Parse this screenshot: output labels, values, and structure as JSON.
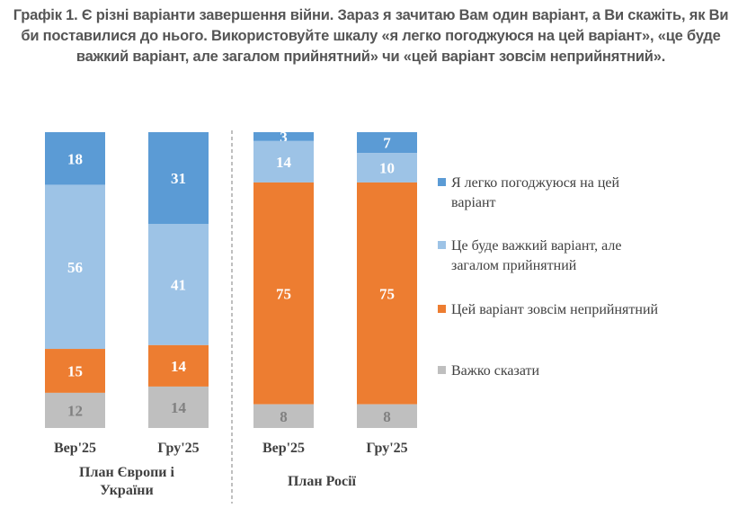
{
  "chart_data": {
    "type": "bar",
    "stacked": true,
    "title": "Графік 1. Є різні варіанти завершення війни. Зараз я зачитаю Вам один варіант, а Ви скажіть, як Ви би поставилися до нього. Використовуйте шкалу «я легко погоджуюся на цей варіант», «це буде важкий варіант, але загалом прийнятний» чи «цей варіант зовсім неприйнятний».",
    "categories": [
      "Вер'25",
      "Гру'25",
      "Вер'25",
      "Гру'25"
    ],
    "groups": [
      {
        "label": "План Європи і України",
        "categories": [
          0,
          1
        ]
      },
      {
        "label": "План Росії",
        "categories": [
          2,
          3
        ]
      }
    ],
    "series": [
      {
        "name": "Я легко погоджуюся на цей варіант",
        "color": "#5b9bd5",
        "label_color": "#ffffff",
        "values": [
          18,
          31,
          3,
          7
        ]
      },
      {
        "name": "Це буде важкий варіант, але загалом прийнятний",
        "color": "#9dc3e6",
        "label_color": "#ffffff",
        "values": [
          56,
          41,
          14,
          10
        ]
      },
      {
        "name": "Цей варіант зовсім неприйнятний",
        "color": "#ed7d31",
        "label_color": "#ffffff",
        "values": [
          15,
          14,
          75,
          75
        ]
      },
      {
        "name": "Важко сказати",
        "color": "#bfbfbf",
        "label_color": "#808080",
        "values": [
          12,
          14,
          8,
          8
        ]
      }
    ],
    "legend_position": "right",
    "grid": false,
    "xlabel": "",
    "ylabel": ""
  }
}
